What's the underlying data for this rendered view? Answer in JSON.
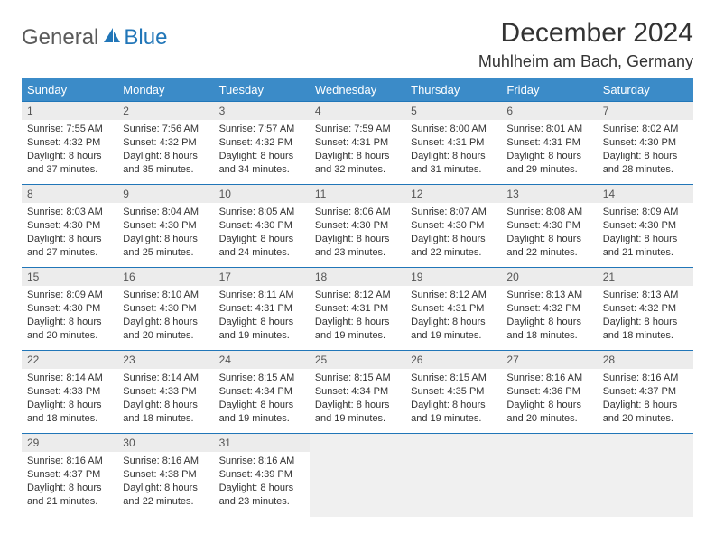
{
  "logo": {
    "text1": "General",
    "text2": "Blue",
    "iconColor": "#2176b8"
  },
  "title": "December 2024",
  "location": "Muhlheim am Bach, Germany",
  "colors": {
    "headerBg": "#3b8bc8",
    "headerText": "#ffffff",
    "rowBorder": "#2176b8",
    "dayNumBg": "#ececec",
    "emptyBg": "#f0f0f0",
    "accent": "#2176b8"
  },
  "dayNames": [
    "Sunday",
    "Monday",
    "Tuesday",
    "Wednesday",
    "Thursday",
    "Friday",
    "Saturday"
  ],
  "days": [
    {
      "n": 1,
      "sunrise": "7:55 AM",
      "sunset": "4:32 PM",
      "daylight": "8 hours and 37 minutes."
    },
    {
      "n": 2,
      "sunrise": "7:56 AM",
      "sunset": "4:32 PM",
      "daylight": "8 hours and 35 minutes."
    },
    {
      "n": 3,
      "sunrise": "7:57 AM",
      "sunset": "4:32 PM",
      "daylight": "8 hours and 34 minutes."
    },
    {
      "n": 4,
      "sunrise": "7:59 AM",
      "sunset": "4:31 PM",
      "daylight": "8 hours and 32 minutes."
    },
    {
      "n": 5,
      "sunrise": "8:00 AM",
      "sunset": "4:31 PM",
      "daylight": "8 hours and 31 minutes."
    },
    {
      "n": 6,
      "sunrise": "8:01 AM",
      "sunset": "4:31 PM",
      "daylight": "8 hours and 29 minutes."
    },
    {
      "n": 7,
      "sunrise": "8:02 AM",
      "sunset": "4:30 PM",
      "daylight": "8 hours and 28 minutes."
    },
    {
      "n": 8,
      "sunrise": "8:03 AM",
      "sunset": "4:30 PM",
      "daylight": "8 hours and 27 minutes."
    },
    {
      "n": 9,
      "sunrise": "8:04 AM",
      "sunset": "4:30 PM",
      "daylight": "8 hours and 25 minutes."
    },
    {
      "n": 10,
      "sunrise": "8:05 AM",
      "sunset": "4:30 PM",
      "daylight": "8 hours and 24 minutes."
    },
    {
      "n": 11,
      "sunrise": "8:06 AM",
      "sunset": "4:30 PM",
      "daylight": "8 hours and 23 minutes."
    },
    {
      "n": 12,
      "sunrise": "8:07 AM",
      "sunset": "4:30 PM",
      "daylight": "8 hours and 22 minutes."
    },
    {
      "n": 13,
      "sunrise": "8:08 AM",
      "sunset": "4:30 PM",
      "daylight": "8 hours and 22 minutes."
    },
    {
      "n": 14,
      "sunrise": "8:09 AM",
      "sunset": "4:30 PM",
      "daylight": "8 hours and 21 minutes."
    },
    {
      "n": 15,
      "sunrise": "8:09 AM",
      "sunset": "4:30 PM",
      "daylight": "8 hours and 20 minutes."
    },
    {
      "n": 16,
      "sunrise": "8:10 AM",
      "sunset": "4:30 PM",
      "daylight": "8 hours and 20 minutes."
    },
    {
      "n": 17,
      "sunrise": "8:11 AM",
      "sunset": "4:31 PM",
      "daylight": "8 hours and 19 minutes."
    },
    {
      "n": 18,
      "sunrise": "8:12 AM",
      "sunset": "4:31 PM",
      "daylight": "8 hours and 19 minutes."
    },
    {
      "n": 19,
      "sunrise": "8:12 AM",
      "sunset": "4:31 PM",
      "daylight": "8 hours and 19 minutes."
    },
    {
      "n": 20,
      "sunrise": "8:13 AM",
      "sunset": "4:32 PM",
      "daylight": "8 hours and 18 minutes."
    },
    {
      "n": 21,
      "sunrise": "8:13 AM",
      "sunset": "4:32 PM",
      "daylight": "8 hours and 18 minutes."
    },
    {
      "n": 22,
      "sunrise": "8:14 AM",
      "sunset": "4:33 PM",
      "daylight": "8 hours and 18 minutes."
    },
    {
      "n": 23,
      "sunrise": "8:14 AM",
      "sunset": "4:33 PM",
      "daylight": "8 hours and 18 minutes."
    },
    {
      "n": 24,
      "sunrise": "8:15 AM",
      "sunset": "4:34 PM",
      "daylight": "8 hours and 19 minutes."
    },
    {
      "n": 25,
      "sunrise": "8:15 AM",
      "sunset": "4:34 PM",
      "daylight": "8 hours and 19 minutes."
    },
    {
      "n": 26,
      "sunrise": "8:15 AM",
      "sunset": "4:35 PM",
      "daylight": "8 hours and 19 minutes."
    },
    {
      "n": 27,
      "sunrise": "8:16 AM",
      "sunset": "4:36 PM",
      "daylight": "8 hours and 20 minutes."
    },
    {
      "n": 28,
      "sunrise": "8:16 AM",
      "sunset": "4:37 PM",
      "daylight": "8 hours and 20 minutes."
    },
    {
      "n": 29,
      "sunrise": "8:16 AM",
      "sunset": "4:37 PM",
      "daylight": "8 hours and 21 minutes."
    },
    {
      "n": 30,
      "sunrise": "8:16 AM",
      "sunset": "4:38 PM",
      "daylight": "8 hours and 22 minutes."
    },
    {
      "n": 31,
      "sunrise": "8:16 AM",
      "sunset": "4:39 PM",
      "daylight": "8 hours and 23 minutes."
    }
  ],
  "labels": {
    "sunrise": "Sunrise:",
    "sunset": "Sunset:",
    "daylight": "Daylight:"
  },
  "layout": {
    "startDayIndex": 0,
    "totalCells": 35
  }
}
